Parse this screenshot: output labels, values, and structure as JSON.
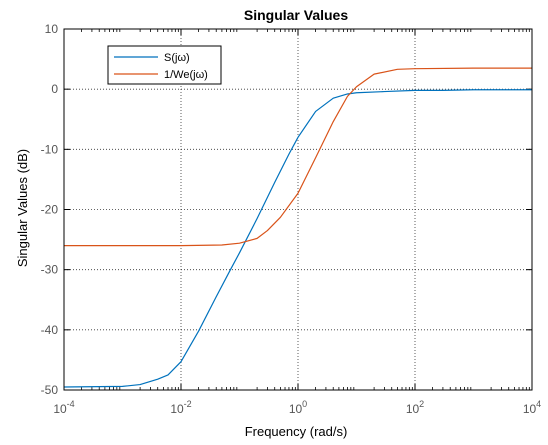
{
  "chart_data": {
    "type": "line",
    "title": "Singular Values",
    "xlabel": "Frequency (rad/s)",
    "ylabel": "Singular Values (dB)",
    "xscale": "log",
    "xlim": [
      0.0001,
      10000
    ],
    "ylim": [
      -50,
      10
    ],
    "x_ticks": [
      {
        "value": 0.0001,
        "base": "10",
        "exp": "-4"
      },
      {
        "value": 0.01,
        "base": "10",
        "exp": "-2"
      },
      {
        "value": 1,
        "base": "10",
        "exp": "0"
      },
      {
        "value": 100,
        "base": "10",
        "exp": "2"
      },
      {
        "value": 10000,
        "base": "10",
        "exp": "4"
      }
    ],
    "y_ticks": [
      10,
      0,
      -10,
      -20,
      -30,
      -40,
      -50
    ],
    "grid": "dotted major",
    "legend": "top-left",
    "series": [
      {
        "name": "S(jω)",
        "color": "#0072bd",
        "x": [
          0.0001,
          0.001,
          0.002,
          0.004,
          0.006,
          0.01,
          0.02,
          0.04,
          0.07,
          0.1,
          0.2,
          0.4,
          0.7,
          1,
          2,
          4,
          7,
          10,
          30,
          100,
          300,
          1000,
          10000
        ],
        "y": [
          -49.5,
          -49.4,
          -49.1,
          -48.2,
          -47.5,
          -45.3,
          -40.2,
          -34.5,
          -30.0,
          -27.2,
          -21.5,
          -15.5,
          -10.8,
          -8.0,
          -3.7,
          -1.5,
          -0.8,
          -0.6,
          -0.4,
          -0.2,
          -0.2,
          -0.1,
          -0.1
        ]
      },
      {
        "name": "1/We(jω)",
        "color": "#d95319",
        "x": [
          0.0001,
          0.01,
          0.05,
          0.1,
          0.2,
          0.3,
          0.5,
          1,
          2,
          4,
          7,
          10,
          20,
          50,
          100,
          1000,
          10000
        ],
        "y": [
          -26,
          -26,
          -25.9,
          -25.6,
          -24.8,
          -23.5,
          -21.3,
          -17.3,
          -11.4,
          -5.4,
          -1.2,
          0.4,
          2.5,
          3.3,
          3.4,
          3.5,
          3.5
        ]
      }
    ]
  }
}
